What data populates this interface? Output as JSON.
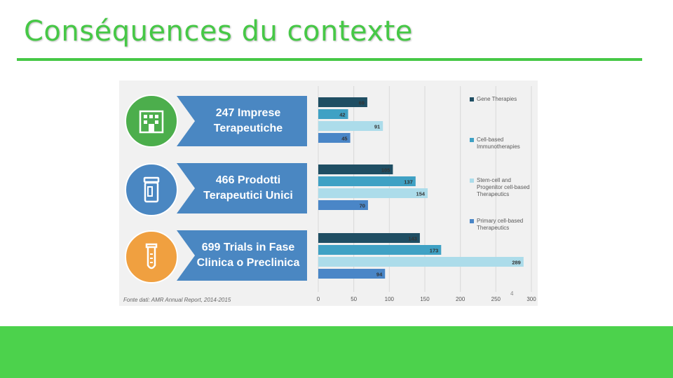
{
  "slide": {
    "title": "Conséquences du contexte",
    "colors": {
      "accent": "#46c846",
      "footer": "#4cd24c"
    }
  },
  "infographic": {
    "cards": [
      {
        "line1": "247 Imprese",
        "line2": "Terapeutiche",
        "icon": "building-icon",
        "ring_color": "#4cae4c"
      },
      {
        "line1": "466 Prodotti",
        "line2": "Terapeutici Unici",
        "icon": "pill-bottle-icon",
        "ring_color": "#4a87c2"
      },
      {
        "line1": "699 Trials in Fase",
        "line2": "Clinica o Preclinica",
        "icon": "test-tube-icon",
        "ring_color": "#f0a040"
      }
    ],
    "source": "Fonte dati: AMR Annual Report, 2014-2015",
    "page_number": "4"
  },
  "chart_data": {
    "type": "bar",
    "orientation": "horizontal",
    "groups": [
      "247 Imprese Terapeutiche",
      "466 Prodotti Terapeutici Unici",
      "699 Trials in Fase Clinica o Preclinica"
    ],
    "series": [
      {
        "name": "Gene Therapies",
        "color": "#1f4e63",
        "values": [
          69,
          105,
          143
        ]
      },
      {
        "name": "Cell-based Immunotherapies",
        "color": "#3fa1c4",
        "values": [
          42,
          137,
          173
        ]
      },
      {
        "name": "Stem-cell and Progenitor cell-based Therapeutics",
        "color": "#acdcea",
        "values": [
          91,
          154,
          289
        ]
      },
      {
        "name": "Primary cell-based Therapeutics",
        "color": "#4a86c7",
        "values": [
          45,
          70,
          94
        ]
      }
    ],
    "xlim": [
      0,
      300
    ],
    "xticks": [
      0,
      50,
      100,
      150,
      200,
      250,
      300
    ],
    "grid": true,
    "legend_position": "right"
  }
}
